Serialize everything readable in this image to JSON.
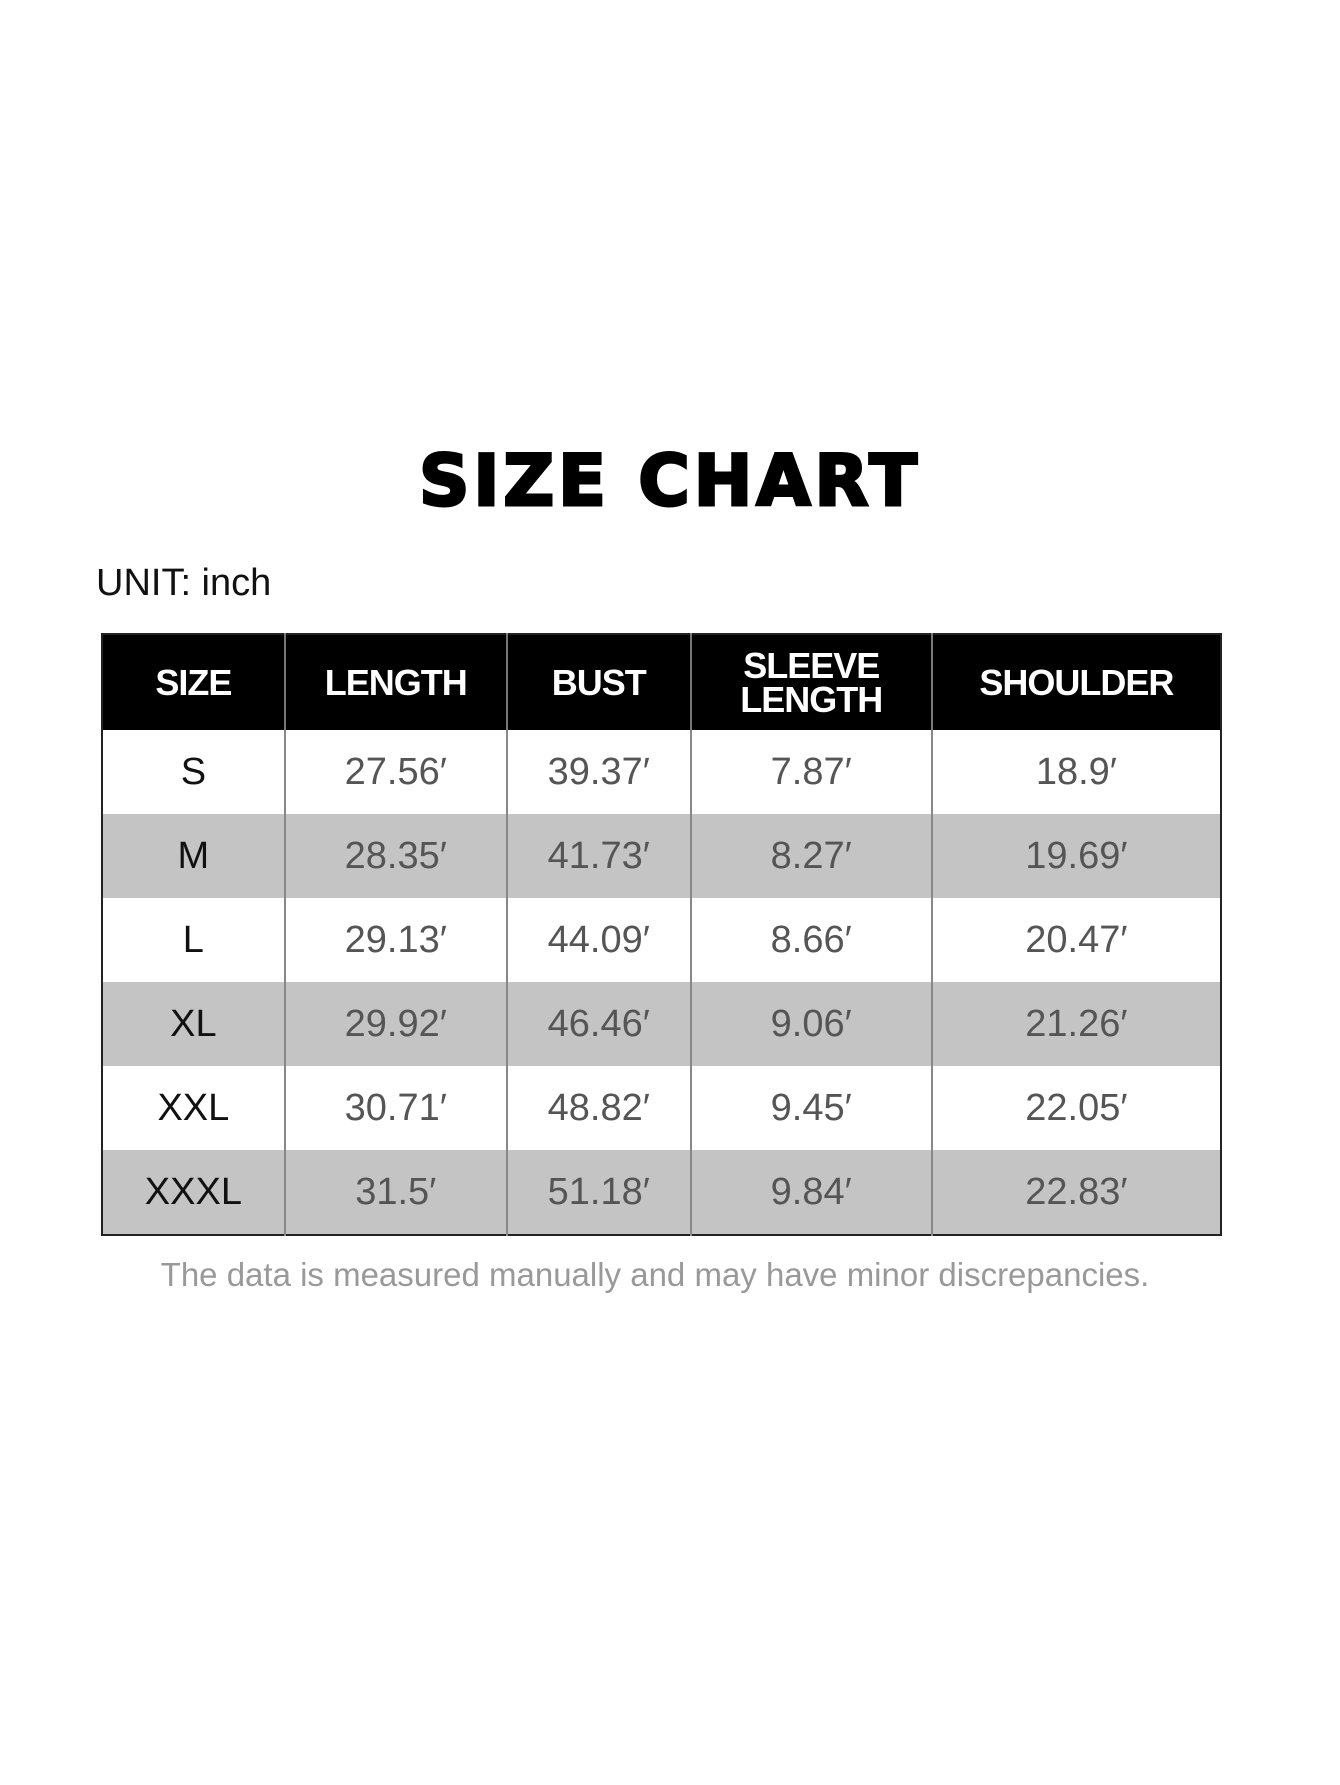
{
  "title": "SIZE CHART",
  "unit_label": "UNIT: inch",
  "table": {
    "headers": [
      "SIZE",
      "LENGTH",
      "BUST",
      "SLEEVE LENGTH",
      "SHOULDER"
    ],
    "rows": [
      [
        "S",
        "27.56′",
        "39.37′",
        "7.87′",
        "18.9′"
      ],
      [
        "M",
        "28.35′",
        "41.73′",
        "8.27′",
        "19.69′"
      ],
      [
        "L",
        "29.13′",
        "44.09′",
        "8.66′",
        "20.47′"
      ],
      [
        "XL",
        "29.92′",
        "46.46′",
        "9.06′",
        "21.26′"
      ],
      [
        "XXL",
        "30.71′",
        "48.82′",
        "9.45′",
        "22.05′"
      ],
      [
        "XXXL",
        "31.5′",
        "51.18′",
        "9.84′",
        "22.83′"
      ]
    ]
  },
  "note": "The data is measured manually and may have minor discrepancies.",
  "colors": {
    "header_bg": "#000000",
    "alt_row_bg": "#c4c4c4",
    "value_text": "#555555",
    "note_text": "#999999"
  }
}
